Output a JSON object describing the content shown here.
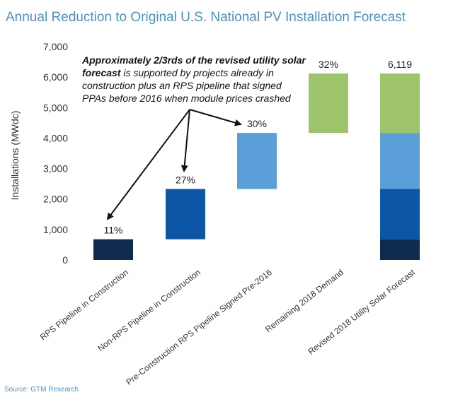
{
  "header": {
    "title": "Annual Reduction to Original U.S. National PV Installation Forecast"
  },
  "footer": {
    "source": "Source: GTM Research"
  },
  "annotation": {
    "line1_bold": "Approximately 2/3rds of the revised utility solar",
    "line2_bold": "forecast",
    "line2_rest": " is supported by projects already in",
    "line3": "construction plus an RPS pipeline that signed",
    "line4": "PPAs before 2016 when module prices crashed"
  },
  "chart_data": {
    "type": "bar",
    "subtype": "waterfall",
    "ylabel": "Installations (MWdc)",
    "ylim": [
      0,
      7000
    ],
    "yticks": [
      0,
      1000,
      2000,
      3000,
      4000,
      5000,
      6000,
      7000
    ],
    "ytick_labels": [
      "0",
      "1,000",
      "2,000",
      "3,000",
      "4,000",
      "5,000",
      "6,000",
      "7,000"
    ],
    "grid": false,
    "categories": [
      "RPS Pipeline in Construction",
      "Non-RPS Pipeline in Construction",
      "Pre-Construction RPS Pipeline Signed Pre-2016",
      "Remaining 2018 Demand",
      "Revised 2018 Utility Solar Forecast"
    ],
    "steps": [
      {
        "category": "RPS Pipeline in Construction",
        "start": 0,
        "end": 680,
        "label": "11%",
        "color": "#0e2a4e"
      },
      {
        "category": "Non-RPS Pipeline in Construction",
        "start": 680,
        "end": 2330,
        "label": "27%",
        "color": "#0d56a6"
      },
      {
        "category": "Pre-Construction RPS Pipeline Signed Pre-2016",
        "start": 2330,
        "end": 4170,
        "label": "30%",
        "color": "#5b9fd9"
      },
      {
        "category": "Remaining 2018 Demand",
        "start": 4170,
        "end": 6119,
        "label": "32%",
        "color": "#9dc46b"
      }
    ],
    "total": {
      "category": "Revised 2018 Utility Solar Forecast",
      "value": 6119,
      "label": "6,119",
      "segments": [
        {
          "start": 0,
          "end": 680,
          "color": "#0e2a4e"
        },
        {
          "start": 680,
          "end": 2330,
          "color": "#0d56a6"
        },
        {
          "start": 2330,
          "end": 4170,
          "color": "#5b9fd9"
        },
        {
          "start": 4170,
          "end": 6119,
          "color": "#9dc46b"
        }
      ]
    }
  }
}
